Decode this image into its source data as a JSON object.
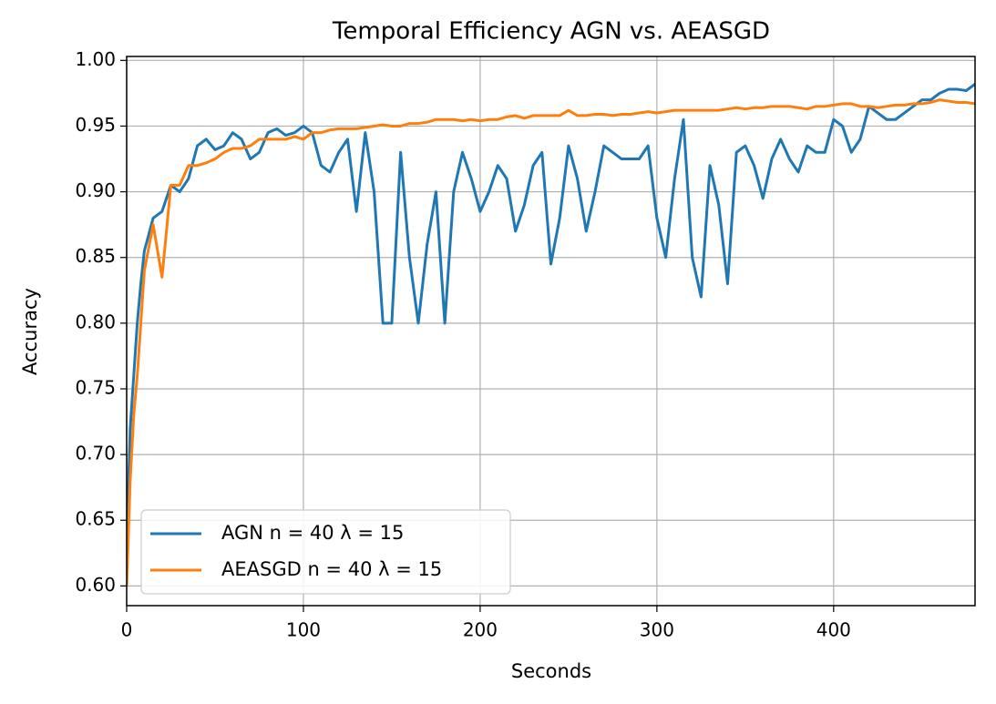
{
  "chart_data": {
    "type": "line",
    "title": "Temporal Efficiency AGN vs. AEASGD",
    "x_label": "Seconds",
    "y_label": "Accuracy",
    "x": [
      0,
      2,
      4,
      6,
      8,
      10,
      15,
      20,
      25,
      30,
      35,
      40,
      45,
      50,
      55,
      60,
      65,
      70,
      75,
      80,
      85,
      90,
      95,
      100,
      105,
      110,
      115,
      120,
      125,
      130,
      135,
      140,
      145,
      150,
      155,
      160,
      165,
      170,
      175,
      180,
      185,
      190,
      195,
      200,
      205,
      210,
      215,
      220,
      225,
      230,
      235,
      240,
      245,
      250,
      255,
      260,
      265,
      270,
      275,
      280,
      285,
      290,
      295,
      300,
      305,
      310,
      315,
      320,
      325,
      330,
      335,
      340,
      345,
      350,
      355,
      360,
      365,
      370,
      375,
      380,
      385,
      390,
      395,
      400,
      405,
      410,
      415,
      420,
      425,
      430,
      435,
      440,
      445,
      450,
      455,
      460,
      465,
      470,
      475,
      480
    ],
    "series": [
      {
        "name": "AGN n = 40 λ = 15",
        "color": "#1f77b4",
        "values": [
          0.63,
          0.72,
          0.76,
          0.8,
          0.83,
          0.855,
          0.88,
          0.885,
          0.905,
          0.9,
          0.91,
          0.935,
          0.94,
          0.932,
          0.935,
          0.945,
          0.94,
          0.925,
          0.93,
          0.945,
          0.948,
          0.943,
          0.945,
          0.95,
          0.945,
          0.92,
          0.915,
          0.93,
          0.94,
          0.885,
          0.945,
          0.9,
          0.8,
          0.8,
          0.93,
          0.85,
          0.8,
          0.86,
          0.9,
          0.8,
          0.9,
          0.93,
          0.91,
          0.885,
          0.9,
          0.92,
          0.91,
          0.87,
          0.89,
          0.92,
          0.93,
          0.845,
          0.88,
          0.935,
          0.91,
          0.87,
          0.9,
          0.935,
          0.93,
          0.925,
          0.925,
          0.925,
          0.935,
          0.88,
          0.85,
          0.91,
          0.955,
          0.85,
          0.82,
          0.92,
          0.89,
          0.83,
          0.93,
          0.935,
          0.92,
          0.895,
          0.925,
          0.94,
          0.925,
          0.915,
          0.935,
          0.93,
          0.93,
          0.955,
          0.95,
          0.93,
          0.94,
          0.965,
          0.96,
          0.955,
          0.955,
          0.96,
          0.965,
          0.97,
          0.97,
          0.975,
          0.978,
          0.978,
          0.977,
          0.982
        ]
      },
      {
        "name": "AEASGD n = 40 λ = 15",
        "color": "#ff7f0e",
        "values": [
          0.6,
          0.68,
          0.73,
          0.76,
          0.8,
          0.84,
          0.875,
          0.835,
          0.905,
          0.905,
          0.92,
          0.92,
          0.922,
          0.925,
          0.93,
          0.933,
          0.933,
          0.935,
          0.94,
          0.94,
          0.94,
          0.94,
          0.942,
          0.94,
          0.945,
          0.945,
          0.947,
          0.948,
          0.948,
          0.948,
          0.949,
          0.95,
          0.951,
          0.95,
          0.95,
          0.952,
          0.952,
          0.953,
          0.955,
          0.955,
          0.955,
          0.954,
          0.955,
          0.954,
          0.955,
          0.955,
          0.957,
          0.958,
          0.956,
          0.958,
          0.958,
          0.958,
          0.958,
          0.962,
          0.958,
          0.958,
          0.959,
          0.959,
          0.958,
          0.959,
          0.959,
          0.96,
          0.961,
          0.96,
          0.961,
          0.962,
          0.962,
          0.962,
          0.962,
          0.962,
          0.962,
          0.963,
          0.964,
          0.963,
          0.964,
          0.964,
          0.965,
          0.965,
          0.965,
          0.964,
          0.963,
          0.965,
          0.965,
          0.966,
          0.967,
          0.967,
          0.965,
          0.965,
          0.964,
          0.965,
          0.966,
          0.966,
          0.967,
          0.967,
          0.968,
          0.97,
          0.969,
          0.968,
          0.968,
          0.967
        ]
      }
    ],
    "xlim": [
      0,
      480
    ],
    "ylim": [
      0.585,
      1.003
    ],
    "xticks": [
      0,
      100,
      200,
      300,
      400
    ],
    "yticks": [
      {
        "value": 0.6,
        "label": "0.60"
      },
      {
        "value": 0.65,
        "label": "0.65"
      },
      {
        "value": 0.7,
        "label": "0.70"
      },
      {
        "value": 0.75,
        "label": "0.75"
      },
      {
        "value": 0.8,
        "label": "0.80"
      },
      {
        "value": 0.85,
        "label": "0.85"
      },
      {
        "value": 0.9,
        "label": "0.90"
      },
      {
        "value": 0.95,
        "label": "0.95"
      },
      {
        "value": 1.0,
        "label": "1.00"
      }
    ],
    "grid": true,
    "legend_position": "lower-left"
  }
}
